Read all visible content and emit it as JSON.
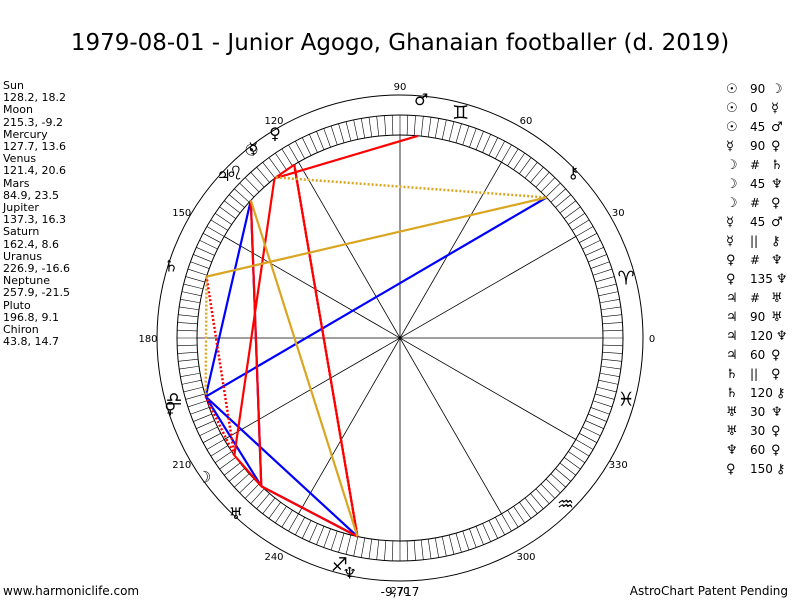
{
  "title": "1979-08-01 - Junior Agogo, Ghanaian footballer (d. 2019)",
  "positions": [
    {
      "name": "Sun",
      "value": "128.2, 18.2"
    },
    {
      "name": "Moon",
      "value": "215.3, -9.2"
    },
    {
      "name": "Mercury",
      "value": "127.7, 13.6"
    },
    {
      "name": "Venus",
      "value": "121.4, 20.6"
    },
    {
      "name": "Mars",
      "value": "84.9, 23.5"
    },
    {
      "name": "Jupiter",
      "value": "137.3, 16.3"
    },
    {
      "name": "Saturn",
      "value": "162.4, 8.6"
    },
    {
      "name": "Uranus",
      "value": "226.9, -16.6"
    },
    {
      "name": "Neptune",
      "value": "257.9, -21.5"
    },
    {
      "name": "Pluto",
      "value": "196.8, 9.1"
    },
    {
      "name": "Chiron",
      "value": "43.8, 14.7"
    }
  ],
  "aspects": [
    {
      "g1": "☉",
      "value": "90",
      "g2": "☽"
    },
    {
      "g1": "☉",
      "value": "0",
      "g2": "☿"
    },
    {
      "g1": "☉",
      "value": "45",
      "g2": "♂"
    },
    {
      "g1": "☿",
      "value": "90",
      "g2": "♀"
    },
    {
      "g1": "☽",
      "value": "#",
      "g2": "♄"
    },
    {
      "g1": "☽",
      "value": "45",
      "g2": "♆"
    },
    {
      "g1": "☽",
      "value": "#",
      "g2": "♀"
    },
    {
      "g1": "☿",
      "value": "45",
      "g2": "♂"
    },
    {
      "g1": "☿",
      "value": "||",
      "g2": "⚷"
    },
    {
      "g1": "♀",
      "value": "#",
      "g2": "♆"
    },
    {
      "g1": "♀",
      "value": "135",
      "g2": "♆"
    },
    {
      "g1": "♃",
      "value": "#",
      "g2": "♅"
    },
    {
      "g1": "♃",
      "value": "90",
      "g2": "♅"
    },
    {
      "g1": "♃",
      "value": "120",
      "g2": "♆"
    },
    {
      "g1": "♃",
      "value": "60",
      "g2": "♀"
    },
    {
      "g1": "♄",
      "value": "||",
      "g2": "♀"
    },
    {
      "g1": "♄",
      "value": "120",
      "g2": "⚷"
    },
    {
      "g1": "♅",
      "value": "30",
      "g2": "♆"
    },
    {
      "g1": "♅",
      "value": "30",
      "g2": "♀"
    },
    {
      "g1": "♆",
      "value": "60",
      "g2": "♀"
    },
    {
      "g1": "♀",
      "value": "150",
      "g2": "⚷"
    }
  ],
  "wheel": {
    "degree_labels": [
      "0",
      "30",
      "60",
      "90",
      "120",
      "150",
      "180",
      "210",
      "240",
      "270",
      "300",
      "330"
    ],
    "sign_glyphs": [
      {
        "sign": "aries",
        "glyph": "♈",
        "lon": 15
      },
      {
        "sign": "gemini",
        "glyph": "♊",
        "lon": 75
      },
      {
        "sign": "leo",
        "glyph": "♌",
        "lon": 135
      },
      {
        "sign": "libra",
        "glyph": "♎",
        "lon": 195
      },
      {
        "sign": "sagittarius",
        "glyph": "♐",
        "lon": 255
      },
      {
        "sign": "aquarius",
        "glyph": "♒",
        "lon": 315
      },
      {
        "sign": "pisces",
        "glyph": "♓",
        "lon": 345
      }
    ],
    "planets": [
      {
        "name": "sun",
        "glyph": "☉",
        "lon": 128.2
      },
      {
        "name": "moon",
        "glyph": "☽",
        "lon": 215.3
      },
      {
        "name": "mercury",
        "glyph": "☿",
        "lon": 127.7
      },
      {
        "name": "venus",
        "glyph": "♀",
        "lon": 121.4
      },
      {
        "name": "mars",
        "glyph": "♂",
        "lon": 84.9
      },
      {
        "name": "jupiter",
        "glyph": "♃",
        "lon": 137.3
      },
      {
        "name": "saturn",
        "glyph": "♄",
        "lon": 162.4
      },
      {
        "name": "uranus",
        "glyph": "♅",
        "lon": 226.9
      },
      {
        "name": "neptune",
        "glyph": "♆",
        "lon": 257.9
      },
      {
        "name": "pluto",
        "glyph": "♀",
        "lon": 196.8
      },
      {
        "name": "chiron",
        "glyph": "⚷",
        "lon": 43.8
      }
    ],
    "aspect_lines": [
      {
        "from": "neptune",
        "to": "pluto",
        "color": "#0000ff",
        "style": "solid"
      },
      {
        "from": "pluto",
        "to": "chiron",
        "color": "#0000ff",
        "style": "solid"
      },
      {
        "from": "pluto",
        "to": "jupiter",
        "color": "#0000ff",
        "style": "solid"
      },
      {
        "from": "uranus",
        "to": "pluto",
        "color": "#0000ff",
        "style": "solid"
      },
      {
        "from": "uranus",
        "to": "neptune",
        "color": "#0000ff",
        "style": "solid"
      },
      {
        "from": "jupiter",
        "to": "uranus",
        "color": "#0000ff",
        "style": "solid"
      },
      {
        "from": "sun",
        "to": "moon",
        "color": "#ff0000",
        "style": "solid"
      },
      {
        "from": "mercury",
        "to": "venus",
        "color": "#ff0000",
        "style": "solid"
      },
      {
        "from": "sun",
        "to": "mars",
        "color": "#ff0000",
        "style": "solid"
      },
      {
        "from": "venus",
        "to": "neptune",
        "color": "#ff0000",
        "style": "solid"
      },
      {
        "from": "moon",
        "to": "uranus",
        "color": "#ff0000",
        "style": "solid"
      },
      {
        "from": "uranus",
        "to": "neptune",
        "color": "#ff0000",
        "style": "solid"
      },
      {
        "from": "jupiter",
        "to": "uranus",
        "color": "#ff0000",
        "style": "solid"
      },
      {
        "from": "moon",
        "to": "saturn",
        "color": "#ff0000",
        "style": "dotted"
      },
      {
        "from": "venus",
        "to": "neptune",
        "color": "#ff0000",
        "style": "dotted"
      },
      {
        "from": "moon",
        "to": "pluto",
        "color": "#ff0000",
        "style": "dotted"
      },
      {
        "from": "saturn",
        "to": "chiron",
        "color": "#daa520",
        "style": "solid"
      },
      {
        "from": "jupiter",
        "to": "neptune",
        "color": "#daa520",
        "style": "solid"
      },
      {
        "from": "mercury",
        "to": "chiron",
        "color": "#daa520",
        "style": "dotted"
      },
      {
        "from": "saturn",
        "to": "pluto",
        "color": "#daa520",
        "style": "dotted"
      }
    ]
  },
  "footer_left": "www.harmoniclife.com",
  "footer_right": "AstroChart Patent Pending",
  "bottom_value": "-9,717",
  "colors": {
    "hard": "#ff0000",
    "soft": "#0000ff",
    "minor": "#daa520"
  }
}
